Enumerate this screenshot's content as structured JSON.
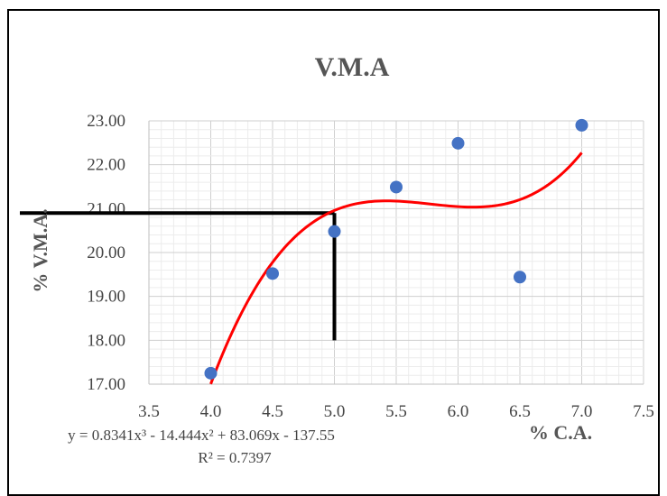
{
  "chart_data": {
    "type": "scatter",
    "title": "V.M.A",
    "xlabel": "% C.A.",
    "ylabel": "% V.M.A.",
    "xlim": [
      3.5,
      7.5
    ],
    "ylim": [
      17.0,
      23.0
    ],
    "x_ticks": [
      "3.5",
      "4.0",
      "4.5",
      "5.0",
      "5.5",
      "6.0",
      "6.5",
      "7.0",
      "7.5"
    ],
    "y_ticks": [
      "17.00",
      "18.00",
      "19.00",
      "20.00",
      "21.00",
      "22.00",
      "23.00"
    ],
    "grid": true,
    "series": [
      {
        "color": "#4472C4",
        "points": [
          {
            "x": 4.0,
            "y": 17.25
          },
          {
            "x": 4.5,
            "y": 19.52
          },
          {
            "x": 5.0,
            "y": 20.48
          },
          {
            "x": 5.5,
            "y": 21.49
          },
          {
            "x": 6.0,
            "y": 22.49
          },
          {
            "x": 6.5,
            "y": 19.44
          },
          {
            "x": 7.0,
            "y": 22.9
          }
        ]
      }
    ],
    "trendline": {
      "type": "polynomial",
      "order": 3,
      "color": "#FF0000",
      "coefficients": [
        0.8341,
        -14.444,
        83.069,
        -137.55
      ],
      "x_range": [
        4.0,
        7.0
      ],
      "equation_label": "y = 0.8341x³ - 14.444x² + 83.069x - 137.55",
      "r2_label": "R² = 0.7397"
    },
    "reference_lines": {
      "color": "#000000",
      "horizontal": {
        "y": 20.9,
        "x_from": 3.5,
        "x_to": 5.0
      },
      "vertical": {
        "x": 5.0,
        "y_from": 18.0,
        "y_to": 20.9
      }
    }
  }
}
